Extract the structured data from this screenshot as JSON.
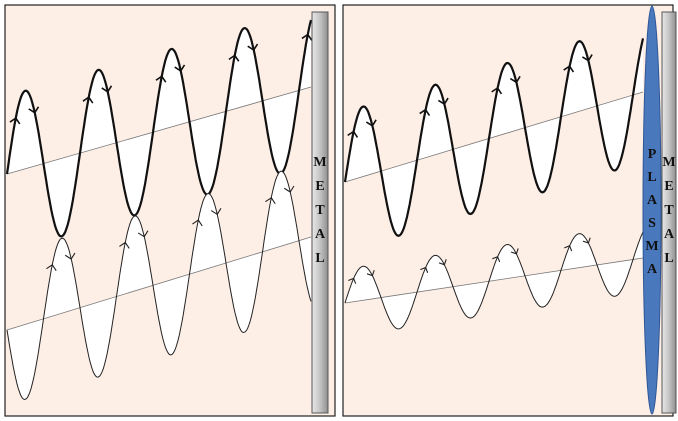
{
  "left_panel": {
    "metal_label": "METAL"
  },
  "right_panel": {
    "plasma_label": "PLASMA",
    "metal_label": "METAL"
  },
  "colors": {
    "background": "#fdeee6",
    "plasma": "#4a78bd",
    "metal": "#b8b8b8",
    "wave_fill": "#ffffff"
  }
}
